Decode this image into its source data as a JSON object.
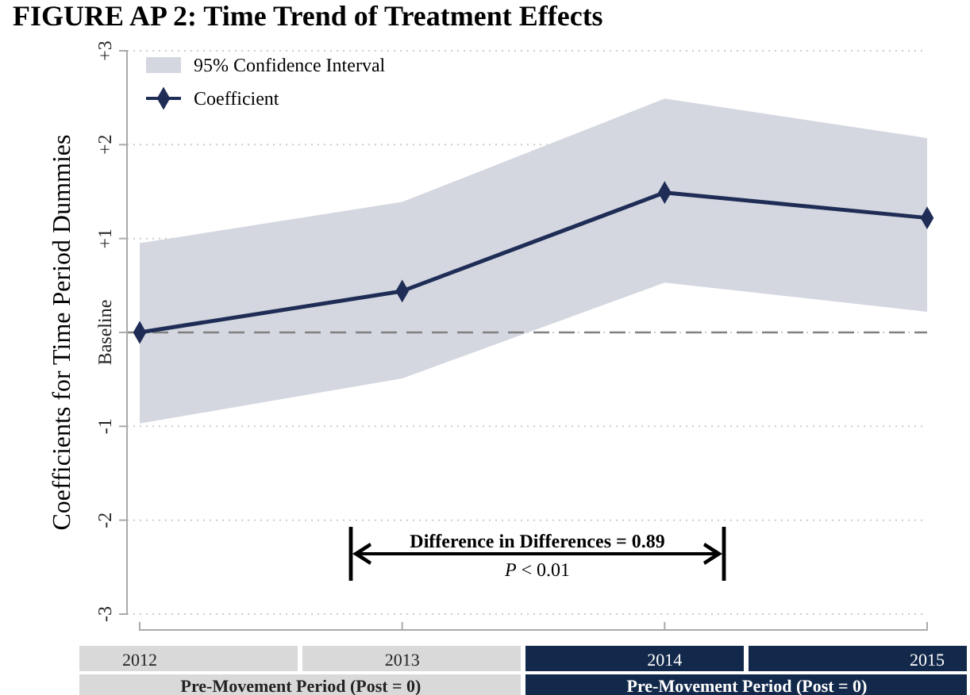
{
  "chart_data": {
    "type": "line",
    "title": "FIGURE AP 2: Time Trend of Treatment Effects",
    "ylabel": "Coefficients for Time Period Dummies",
    "categories": [
      "2012",
      "2013",
      "2014",
      "2015"
    ],
    "series": [
      {
        "name": "Coefficient",
        "color": "#1f2d56",
        "values": [
          0,
          0.44,
          1.49,
          1.22
        ],
        "lower": [
          -0.97,
          -0.49,
          0.53,
          0.22
        ],
        "upper": [
          0.95,
          1.39,
          2.49,
          2.07
        ]
      }
    ],
    "ylim": [
      -3,
      3
    ],
    "yticks": [
      {
        "value": 3,
        "label": "+3"
      },
      {
        "value": 2,
        "label": "+2"
      },
      {
        "value": 1,
        "label": "+1"
      },
      {
        "value": 0,
        "label": "Baseline"
      },
      {
        "value": -1,
        "label": "-1"
      },
      {
        "value": -2,
        "label": "-2"
      },
      {
        "value": -3,
        "label": "-3"
      }
    ],
    "grid": "y",
    "legend": "top left",
    "marker": "diamond",
    "line_style": "solid",
    "ref_lines": [
      {
        "axis": "y",
        "value": 0,
        "color": "#808080",
        "line_style": "dashed"
      }
    ],
    "annotations": [
      "95% Confidence Interval",
      "Difference in Differences = 0.89",
      "P < 0.01",
      "Pre-Movement Period (Post = 0)",
      "Pre-Movement Period (Post = 0)"
    ]
  }
}
